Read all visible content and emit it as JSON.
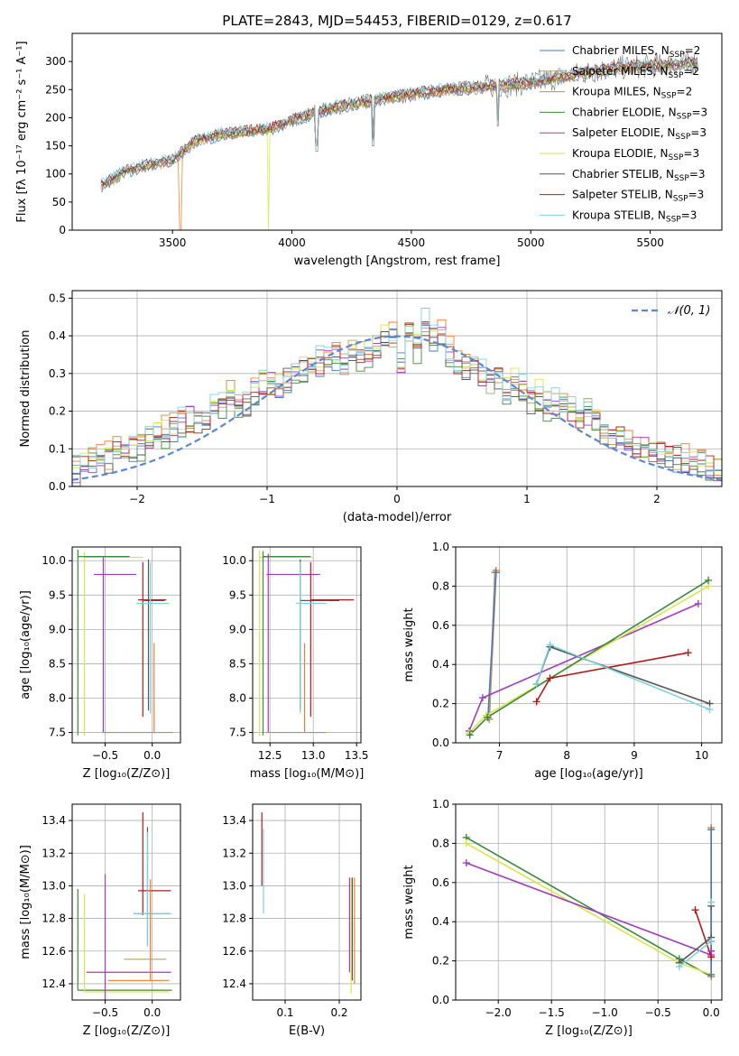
{
  "figure_title": "PLATE=2843, MJD=54453, FIBERID=0129, z=0.617",
  "colors": {
    "Chabrier MILES": "#4a78c5",
    "Salpeter MILES": "#b7a26b",
    "Kroupa MILES": "#f07e2b",
    "Chabrier ELODIE": "#3b8a3b",
    "Salpeter ELODIE": "#a03cba",
    "Kroupa ELODIE": "#d6e64a",
    "Chabrier STELIB": "#555555",
    "Salpeter STELIB": "#b31b1b",
    "Kroupa STELIB": "#7fd1e0",
    "gaussian": "#5b87d6",
    "grid": "#b0b0b0"
  },
  "chart_data": [
    {
      "id": "spectrum",
      "type": "line",
      "title": "PLATE=2843, MJD=54453, FIBERID=0129, z=0.617",
      "xlabel": "wavelength [Angstrom, rest frame]",
      "ylabel": "Flux [fλ 10⁻¹⁷ erg cm⁻² s⁻¹ A⁻¹]",
      "xlim": [
        3080,
        5800
      ],
      "ylim": [
        0,
        350
      ],
      "xticks": [
        3500,
        4000,
        4500,
        5000,
        5500
      ],
      "yticks": [
        0,
        50,
        100,
        150,
        200,
        250,
        300
      ],
      "grid": false,
      "legend_position": "top-right",
      "data_continuum": {
        "x": [
          3200,
          3300,
          3400,
          3500,
          3600,
          3700,
          3800,
          3900,
          4000,
          4100,
          4200,
          4300,
          4400,
          4500,
          4600,
          4700,
          4800,
          4900,
          5000,
          5100,
          5200,
          5300,
          5400,
          5500,
          5600,
          5700
        ],
        "y": [
          78,
          105,
          116,
          125,
          160,
          170,
          175,
          180,
          195,
          210,
          220,
          228,
          235,
          242,
          248,
          252,
          255,
          258,
          262,
          270,
          278,
          285,
          290,
          292,
          295,
          298
        ]
      },
      "absorption_features": [
        {
          "name": "H-theta dip",
          "x": 3532,
          "y": 0
        },
        {
          "name": "Ca K dip",
          "x": 3900,
          "y": 0
        },
        {
          "name": "H-delta",
          "x": 4103,
          "y": 140
        },
        {
          "name": "H-gamma",
          "x": 4340,
          "y": 150
        },
        {
          "name": "H-beta",
          "x": 4862,
          "y": 185
        }
      ],
      "series": [
        {
          "name": "Chabrier MILES, N_SSP=2",
          "label_main": "Chabrier MILES, N",
          "label_sub": "SSP",
          "label_tail": "=2"
        },
        {
          "name": "Salpeter MILES, N_SSP=2",
          "label_main": "Salpeter MILES, N",
          "label_sub": "SSP",
          "label_tail": "=2"
        },
        {
          "name": "Kroupa MILES, N_SSP=2",
          "label_main": "Kroupa MILES, N",
          "label_sub": "SSP",
          "label_tail": "=2"
        },
        {
          "name": "Chabrier ELODIE, N_SSP=3",
          "label_main": "Chabrier ELODIE, N",
          "label_sub": "SSP",
          "label_tail": "=3"
        },
        {
          "name": "Salpeter ELODIE, N_SSP=3",
          "label_main": "Salpeter ELODIE, N",
          "label_sub": "SSP",
          "label_tail": "=3"
        },
        {
          "name": "Kroupa ELODIE, N_SSP=3",
          "label_main": "Kroupa ELODIE, N",
          "label_sub": "SSP",
          "label_tail": "=3"
        },
        {
          "name": "Chabrier STELIB, N_SSP=3",
          "label_main": "Chabrier STELIB, N",
          "label_sub": "SSP",
          "label_tail": "=3"
        },
        {
          "name": "Salpeter STELIB, N_SSP=3",
          "label_main": "Salpeter STELIB, N",
          "label_sub": "SSP",
          "label_tail": "=3"
        },
        {
          "name": "Kroupa STELIB, N_SSP=3",
          "label_main": "Kroupa STELIB, N",
          "label_sub": "SSP",
          "label_tail": "=3"
        }
      ]
    },
    {
      "id": "residuals",
      "type": "histogram",
      "xlabel": "(data-model)/error",
      "ylabel": "Normed distribution",
      "xlim": [
        -2.5,
        2.5
      ],
      "ylim": [
        0,
        0.52
      ],
      "xticks": [
        -2,
        -1,
        0,
        1,
        2
      ],
      "yticks": [
        0.0,
        0.1,
        0.2,
        0.3,
        0.4,
        0.5
      ],
      "grid": true,
      "legend_position": "top-right",
      "legend_label": "𝒩(0, 1)",
      "bin_width": 0.1,
      "bin_start": -2.5,
      "envelope": [
        0.045,
        0.055,
        0.065,
        0.07,
        0.08,
        0.09,
        0.095,
        0.1,
        0.11,
        0.125,
        0.135,
        0.145,
        0.16,
        0.17,
        0.18,
        0.175,
        0.18,
        0.2,
        0.22,
        0.24,
        0.22,
        0.22,
        0.26,
        0.28,
        0.27,
        0.27,
        0.29,
        0.3,
        0.31,
        0.32,
        0.33,
        0.34,
        0.34,
        0.32,
        0.36,
        0.35,
        0.36,
        0.38,
        0.39,
        0.4,
        0.33,
        0.42,
        0.37,
        0.43,
        0.4,
        0.42,
        0.36,
        0.33,
        0.32,
        0.31,
        0.3,
        0.28,
        0.29,
        0.25,
        0.27,
        0.26,
        0.23,
        0.24,
        0.21,
        0.22,
        0.22,
        0.2,
        0.18,
        0.19,
        0.17,
        0.15,
        0.14,
        0.13,
        0.12,
        0.11,
        0.1,
        0.1,
        0.09,
        0.08,
        0.08,
        0.07,
        0.06,
        0.06,
        0.05,
        0.05
      ],
      "gaussian_mean": 0,
      "gaussian_sigma": 1
    },
    {
      "id": "age-vs-Z",
      "type": "errorbar",
      "xlabel": "Z [log₁₀(Z/Z⊙)]",
      "ylabel": "age  [log₁₀(age/yr)]",
      "xlim": [
        -0.85,
        0.3
      ],
      "ylim": [
        7.35,
        10.2
      ],
      "xticks": [
        -0.5,
        0.0
      ],
      "yticks": [
        7.5,
        8.0,
        8.5,
        9.0,
        9.5,
        10.0
      ],
      "grid": true,
      "bars": [
        {
          "series": "Kroupa ELODIE",
          "x": -0.72,
          "y": 10.05,
          "xerr": [
            0.0,
            0.62
          ],
          "yerr": [
            2.6,
            0.08
          ]
        },
        {
          "series": "Chabrier ELODIE",
          "x": -0.79,
          "y": 10.06,
          "xerr": [
            0.0,
            0.55
          ],
          "yerr": [
            2.6,
            0.1
          ]
        },
        {
          "series": "Salpeter ELODIE",
          "x": -0.52,
          "y": 9.8,
          "xerr": [
            0.1,
            0.35
          ],
          "yerr": [
            2.3,
            0.25
          ]
        },
        {
          "series": "Salpeter STELIB",
          "x": -0.1,
          "y": 9.43,
          "xerr": [
            0.05,
            0.25
          ],
          "yerr": [
            1.7,
            0.55
          ]
        },
        {
          "series": "Chabrier STELIB",
          "x": -0.04,
          "y": 9.42,
          "xerr": [
            0.05,
            0.17
          ],
          "yerr": [
            1.6,
            0.6
          ]
        },
        {
          "series": "Kroupa STELIB",
          "x": -0.02,
          "y": 9.38,
          "xerr": [
            0.15,
            0.2
          ],
          "yerr": [
            1.6,
            0.6
          ]
        },
        {
          "series": "Kroupa MILES",
          "x": 0.02,
          "y": 7.5,
          "xerr": [
            0.55,
            0.2
          ],
          "yerr": [
            0.0,
            1.3
          ]
        }
      ]
    },
    {
      "id": "age-vs-mass",
      "type": "errorbar",
      "xlabel": "mass [log₁₀(M/M⊙)]",
      "ylabel": "",
      "xlim": [
        12.3,
        13.55
      ],
      "ylim": [
        7.35,
        10.2
      ],
      "xticks": [
        12.5,
        13.0,
        13.5
      ],
      "yticks": [
        7.5,
        8.0,
        8.5,
        9.0,
        9.5,
        10.0
      ],
      "grid": true,
      "bars": [
        {
          "series": "Kroupa ELODIE",
          "x": 12.38,
          "y": 10.05,
          "xerr": [
            0.0,
            0.62
          ],
          "yerr": [
            2.6,
            0.1
          ]
        },
        {
          "series": "Chabrier ELODIE",
          "x": 12.42,
          "y": 10.06,
          "xerr": [
            0.0,
            0.55
          ],
          "yerr": [
            2.6,
            0.08
          ]
        },
        {
          "series": "Salpeter ELODIE",
          "x": 12.48,
          "y": 9.8,
          "xerr": [
            0.02,
            0.6
          ],
          "yerr": [
            2.3,
            0.3
          ]
        },
        {
          "series": "Salpeter STELIB",
          "x": 12.97,
          "y": 9.43,
          "xerr": [
            0.0,
            0.5
          ],
          "yerr": [
            1.7,
            0.55
          ]
        },
        {
          "series": "Chabrier STELIB",
          "x": 12.85,
          "y": 9.42,
          "xerr": [
            0.0,
            0.45
          ],
          "yerr": [
            1.6,
            0.6
          ]
        },
        {
          "series": "Kroupa STELIB",
          "x": 12.85,
          "y": 9.38,
          "xerr": [
            0.05,
            0.3
          ],
          "yerr": [
            1.6,
            0.6
          ]
        },
        {
          "series": "Kroupa MILES",
          "x": 12.9,
          "y": 7.5,
          "xerr": [
            0.45,
            0.25
          ],
          "yerr": [
            0.0,
            1.3
          ]
        }
      ]
    },
    {
      "id": "weight-vs-age",
      "type": "line",
      "xlabel": "age  [log₁₀(age/yr)]",
      "ylabel": "mass weight",
      "xlim": [
        6.35,
        10.3
      ],
      "ylim": [
        0,
        1
      ],
      "xticks": [
        7,
        8,
        9,
        10
      ],
      "yticks": [
        0.0,
        0.2,
        0.4,
        0.6,
        0.8,
        1.0
      ],
      "grid": true,
      "series": [
        {
          "name": "Kroupa MILES",
          "x": [
            6.85,
            6.95
          ],
          "y": [
            0.12,
            0.88
          ]
        },
        {
          "name": "Salpeter MILES",
          "x": [
            6.85,
            6.93
          ],
          "y": [
            0.12,
            0.87
          ]
        },
        {
          "name": "Chabrier MILES",
          "x": [
            6.83,
            6.95
          ],
          "y": [
            0.13,
            0.87
          ]
        },
        {
          "name": "Salpeter ELODIE",
          "x": [
            6.55,
            6.75,
            9.95
          ],
          "y": [
            0.06,
            0.23,
            0.71
          ]
        },
        {
          "name": "Kroupa ELODIE",
          "x": [
            6.55,
            6.8,
            10.1
          ],
          "y": [
            0.05,
            0.14,
            0.8
          ]
        },
        {
          "name": "Chabrier ELODIE",
          "x": [
            6.56,
            6.82,
            10.1
          ],
          "y": [
            0.04,
            0.13,
            0.83
          ]
        },
        {
          "name": "Salpeter STELIB",
          "x": [
            7.55,
            7.75,
            9.8
          ],
          "y": [
            0.21,
            0.33,
            0.46
          ]
        },
        {
          "name": "Chabrier STELIB",
          "x": [
            7.55,
            7.75,
            10.12
          ],
          "y": [
            0.3,
            0.49,
            0.2
          ]
        },
        {
          "name": "Kroupa STELIB",
          "x": [
            7.55,
            7.75,
            10.12
          ],
          "y": [
            0.3,
            0.5,
            0.17
          ]
        }
      ]
    },
    {
      "id": "mass-vs-Z",
      "type": "errorbar",
      "xlabel": "Z [log₁₀(Z/Z⊙)]",
      "ylabel": "mass [log₁₀(M/M⊙)]",
      "xlim": [
        -0.85,
        0.3
      ],
      "ylim": [
        12.3,
        13.5
      ],
      "xticks": [
        -0.5,
        0.0
      ],
      "yticks": [
        12.4,
        12.6,
        12.8,
        13.0,
        13.2,
        13.4
      ],
      "grid": true,
      "bars": [
        {
          "series": "Chabrier ELODIE",
          "x": -0.79,
          "y": 12.36,
          "xerr": [
            0.0,
            1.0
          ],
          "yerr": [
            0.0,
            0.62
          ]
        },
        {
          "series": "Kroupa ELODIE",
          "x": -0.72,
          "y": 12.35,
          "xerr": [
            0.0,
            0.9
          ],
          "yerr": [
            0.0,
            0.6
          ]
        },
        {
          "series": "Salpeter ELODIE",
          "x": -0.5,
          "y": 12.47,
          "xerr": [
            0.2,
            0.7
          ],
          "yerr": [
            0.2,
            0.6
          ]
        },
        {
          "series": "Chabrier STELIB",
          "x": -0.05,
          "y": 12.83,
          "xerr": [
            0.15,
            0.25
          ],
          "yerr": [
            0.2,
            0.53
          ]
        },
        {
          "series": "Salpeter STELIB",
          "x": -0.1,
          "y": 12.97,
          "xerr": [
            0.05,
            0.3
          ],
          "yerr": [
            0.15,
            0.48
          ]
        },
        {
          "series": "Kroupa STELIB",
          "x": -0.05,
          "y": 12.83,
          "xerr": [
            0.15,
            0.25
          ],
          "yerr": [
            0.2,
            0.5
          ]
        },
        {
          "series": "Kroupa MILES",
          "x": -0.02,
          "y": 12.42,
          "xerr": [
            0.45,
            0.2
          ],
          "yerr": [
            0.0,
            0.62
          ]
        },
        {
          "series": "Salpeter MILES",
          "x": -0.3,
          "y": 12.55,
          "xerr": [
            0.0,
            0.45
          ],
          "yerr": [
            0.0,
            0.0
          ]
        }
      ]
    },
    {
      "id": "mass-vs-EBV",
      "type": "errorbar",
      "xlabel": "E(B-V)",
      "ylabel": "",
      "xlim": [
        0.04,
        0.24
      ],
      "ylim": [
        12.3,
        13.5
      ],
      "xticks": [
        0.1,
        0.2
      ],
      "yticks": [
        12.4,
        12.6,
        12.8,
        13.0,
        13.2,
        13.4
      ],
      "grid": true,
      "bars": [
        {
          "series": "Salpeter STELIB",
          "x": 0.057,
          "y": 13.15,
          "xerr": [
            0,
            0
          ],
          "yerr": [
            0.15,
            0.3
          ]
        },
        {
          "series": "Kroupa STELIB",
          "x": 0.06,
          "y": 13.0,
          "xerr": [
            0,
            0
          ],
          "yerr": [
            0.17,
            0.35
          ]
        },
        {
          "series": "Salpeter ELODIE",
          "x": 0.219,
          "y": 12.8,
          "xerr": [
            0,
            0
          ],
          "yerr": [
            0.33,
            0.25
          ]
        },
        {
          "series": "Kroupa ELODIE",
          "x": 0.222,
          "y": 12.7,
          "xerr": [
            0,
            0
          ],
          "yerr": [
            0.36,
            0.35
          ]
        },
        {
          "series": "Chabrier STELIB",
          "x": 0.224,
          "y": 12.75,
          "xerr": [
            0,
            0
          ],
          "yerr": [
            0.33,
            0.3
          ]
        },
        {
          "series": "Kroupa MILES",
          "x": 0.228,
          "y": 12.75,
          "xerr": [
            0,
            0
          ],
          "yerr": [
            0.35,
            0.3
          ]
        }
      ]
    },
    {
      "id": "weight-vs-Z",
      "type": "line",
      "xlabel": "Z [log₁₀(Z/Z⊙)]",
      "ylabel": "mass weight",
      "xlim": [
        -2.4,
        0.1
      ],
      "ylim": [
        0,
        1
      ],
      "xticks": [
        -2.0,
        -1.5,
        -1.0,
        -0.5,
        0.0
      ],
      "yticks": [
        0.0,
        0.2,
        0.4,
        0.6,
        0.8,
        1.0
      ],
      "grid": true,
      "series": [
        {
          "name": "Chabrier ELODIE",
          "x": [
            -2.3,
            -0.3,
            0.0
          ],
          "y": [
            0.83,
            0.21,
            0.12
          ]
        },
        {
          "name": "Kroupa ELODIE",
          "x": [
            -2.3,
            -0.3,
            0.0
          ],
          "y": [
            0.8,
            0.19,
            0.13
          ]
        },
        {
          "name": "Salpeter ELODIE",
          "x": [
            -2.3,
            0.0,
            0.0
          ],
          "y": [
            0.7,
            0.23,
            0.25
          ]
        },
        {
          "name": "Salpeter STELIB",
          "x": [
            -0.15,
            0.0,
            0.0
          ],
          "y": [
            0.46,
            0.22,
            0.3
          ]
        },
        {
          "name": "Chabrier STELIB",
          "x": [
            -0.3,
            0.0,
            0.0
          ],
          "y": [
            0.19,
            0.32,
            0.48
          ]
        },
        {
          "name": "Kroupa STELIB",
          "x": [
            -0.3,
            0.0,
            0.0
          ],
          "y": [
            0.17,
            0.3,
            0.5
          ]
        },
        {
          "name": "Kroupa MILES",
          "x": [
            0.0,
            0.0
          ],
          "y": [
            0.12,
            0.88
          ]
        },
        {
          "name": "Salpeter MILES",
          "x": [
            0.0,
            0.0
          ],
          "y": [
            0.12,
            0.87
          ]
        },
        {
          "name": "Chabrier MILES",
          "x": [
            0.0,
            0.0
          ],
          "y": [
            0.13,
            0.87
          ]
        }
      ]
    }
  ]
}
